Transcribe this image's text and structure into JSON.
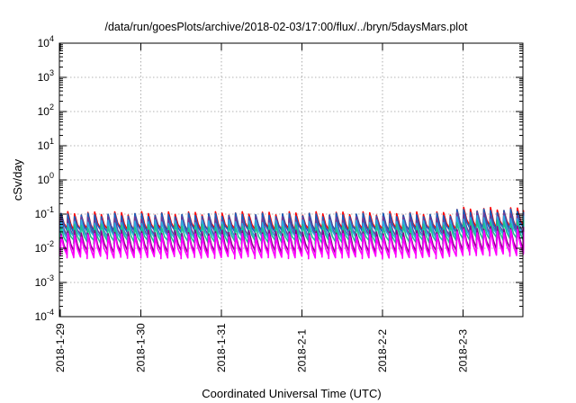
{
  "chart_data": {
    "type": "line",
    "title": "/data/run/goesPlots/archive/2018-02-03/17:00/flux/../bryn/5daysMars.plot",
    "xlabel": "Coordinated Universal Time (UTC)",
    "ylabel": "cSv/day",
    "x_tick_labels": [
      "2018-1-29",
      "2018-1-30",
      "2018-1-31",
      "2018-2-1",
      "2018-2-2",
      "2018-2-3"
    ],
    "x_range_days": [
      0,
      5.75
    ],
    "yscale": "log",
    "ylim": [
      0.0001,
      10000
    ],
    "y_tick_labels": [
      {
        "base": "10",
        "exp": "-4"
      },
      {
        "base": "10",
        "exp": "-3"
      },
      {
        "base": "10",
        "exp": "-2"
      },
      {
        "base": "10",
        "exp": "-1"
      },
      {
        "base": "10",
        "exp": "0"
      },
      {
        "base": "10",
        "exp": "1"
      },
      {
        "base": "10",
        "exp": "2"
      },
      {
        "base": "10",
        "exp": "3"
      },
      {
        "base": "10",
        "exp": "4"
      }
    ],
    "grid": true,
    "sawtooth_period_days": 0.0833,
    "series": [
      {
        "color": "#ff0000",
        "peak": 0.105,
        "trough": 0.034,
        "late_peak": 0.14,
        "late_trough": 0.04
      },
      {
        "color": "#1560bd",
        "peak": 0.095,
        "trough": 0.03,
        "late_peak": 0.125,
        "late_trough": 0.035
      },
      {
        "color": "#6a3d9a",
        "peak": 0.075,
        "trough": 0.022,
        "late_peak": 0.1,
        "late_trough": 0.026
      },
      {
        "color": "#2ca9e1",
        "peak": 0.06,
        "trough": 0.02,
        "late_peak": 0.08,
        "late_trough": 0.024
      },
      {
        "color": "#1fbf8f",
        "peak": 0.045,
        "trough": 0.015,
        "late_peak": 0.06,
        "late_trough": 0.018
      },
      {
        "color": "#8b008b",
        "peak": 0.03,
        "trough": 0.0075,
        "late_peak": 0.04,
        "late_trough": 0.009
      },
      {
        "color": "#ff00ff",
        "peak": 0.024,
        "trough": 0.0055,
        "late_peak": 0.032,
        "late_trough": 0.0065
      }
    ]
  }
}
